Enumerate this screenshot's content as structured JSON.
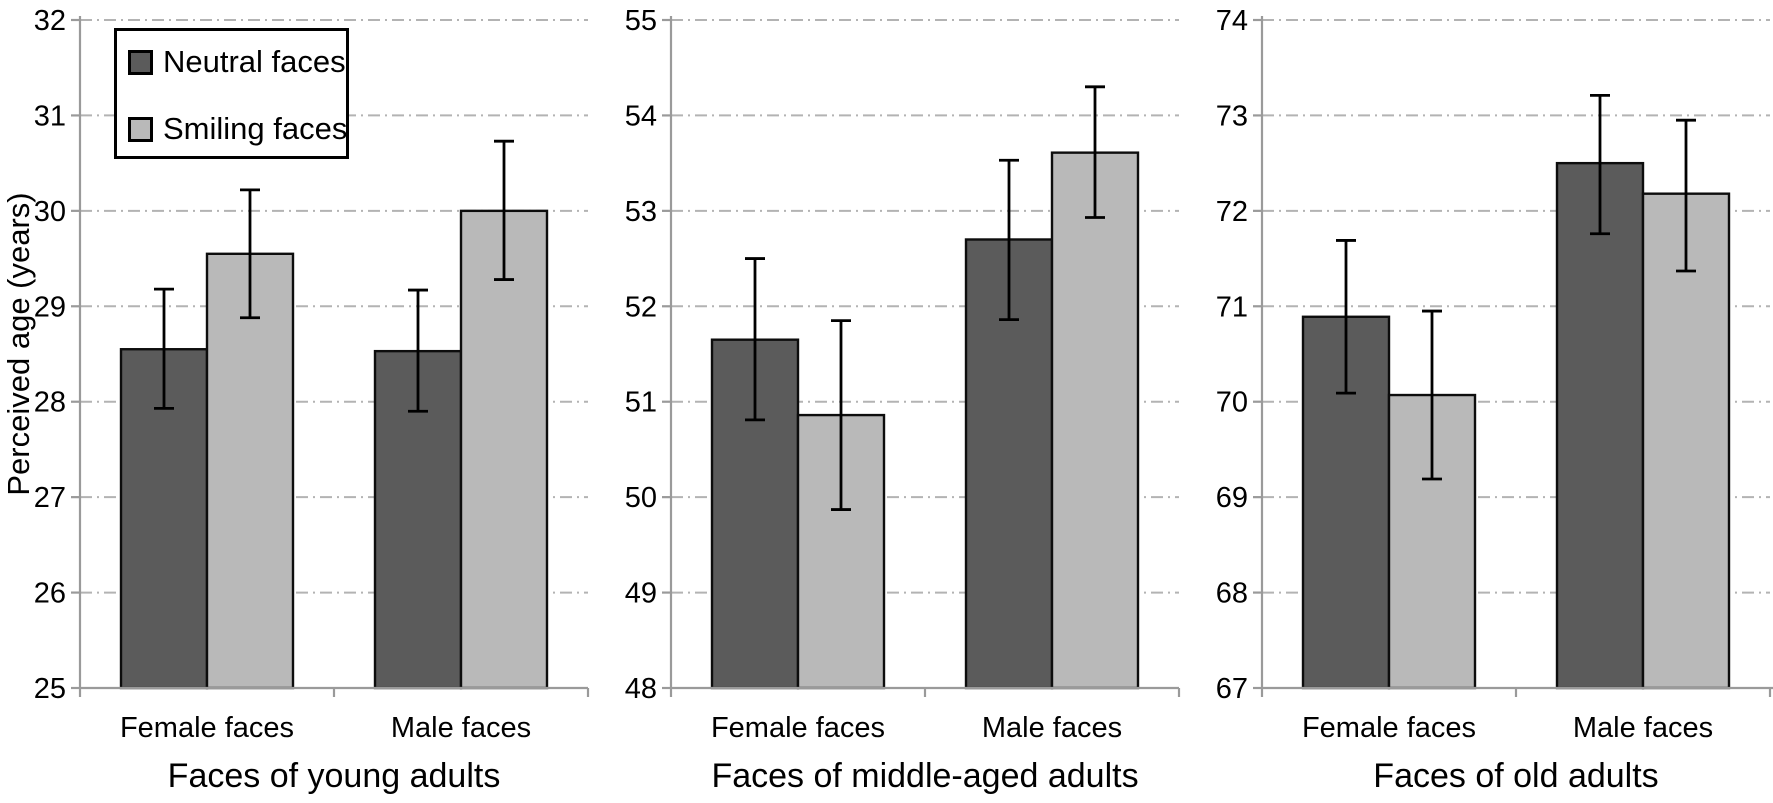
{
  "figure": {
    "background": "#ffffff",
    "y_axis_title": "Perceived age (years)",
    "legend": {
      "position": "top-left of first panel",
      "items": [
        {
          "label": "Neutral faces",
          "series": "neutral"
        },
        {
          "label": "Smiling faces",
          "series": "smiling"
        }
      ]
    },
    "colors": {
      "neutral": "#5b5b5b",
      "smiling": "#b9b9b9",
      "bar_border": "#0d0d0d",
      "error_bar": "#000000",
      "gridline": "#b3b3b3",
      "axis": "#9a9a9a",
      "text": "#000000",
      "legend_border": "#000000",
      "legend_background": "#ffffff"
    }
  },
  "chart_data": [
    {
      "type": "bar",
      "title": "Faces of young adults",
      "categories": [
        "Female faces",
        "Male faces"
      ],
      "ylabel": "Perceived age (years)",
      "ylim": [
        25,
        32
      ],
      "yticks": [
        25,
        26,
        27,
        28,
        29,
        30,
        31,
        32
      ],
      "grid": "horizontal dash-dot",
      "legend_visible": true,
      "series": [
        {
          "name": "Neutral faces",
          "values": [
            28.55,
            28.53
          ],
          "error_low": [
            27.93,
            27.9
          ],
          "error_high": [
            29.18,
            29.17
          ]
        },
        {
          "name": "Smiling faces",
          "values": [
            29.55,
            30.0
          ],
          "error_low": [
            28.88,
            29.28
          ],
          "error_high": [
            30.22,
            30.73
          ]
        }
      ]
    },
    {
      "type": "bar",
      "title": "Faces of middle-aged adults",
      "categories": [
        "Female faces",
        "Male faces"
      ],
      "ylabel": "",
      "ylim": [
        48,
        55
      ],
      "yticks": [
        48,
        49,
        50,
        51,
        52,
        53,
        54,
        55
      ],
      "grid": "horizontal dash-dot",
      "legend_visible": false,
      "series": [
        {
          "name": "Neutral faces",
          "values": [
            51.65,
            52.7
          ],
          "error_low": [
            50.81,
            51.86
          ],
          "error_high": [
            52.5,
            53.53
          ]
        },
        {
          "name": "Smiling faces",
          "values": [
            50.86,
            53.61
          ],
          "error_low": [
            49.87,
            52.93
          ],
          "error_high": [
            51.85,
            54.3
          ]
        }
      ]
    },
    {
      "type": "bar",
      "title": "Faces of old adults",
      "categories": [
        "Female faces",
        "Male faces"
      ],
      "ylabel": "",
      "ylim": [
        67,
        74
      ],
      "yticks": [
        67,
        68,
        69,
        70,
        71,
        72,
        73,
        74
      ],
      "grid": "horizontal dash-dot",
      "legend_visible": false,
      "series": [
        {
          "name": "Neutral faces",
          "values": [
            70.89,
            72.5
          ],
          "error_low": [
            70.09,
            71.76
          ],
          "error_high": [
            71.69,
            73.21
          ]
        },
        {
          "name": "Smiling faces",
          "values": [
            70.07,
            72.18
          ],
          "error_low": [
            69.19,
            71.37
          ],
          "error_high": [
            70.95,
            72.95
          ]
        }
      ]
    }
  ]
}
